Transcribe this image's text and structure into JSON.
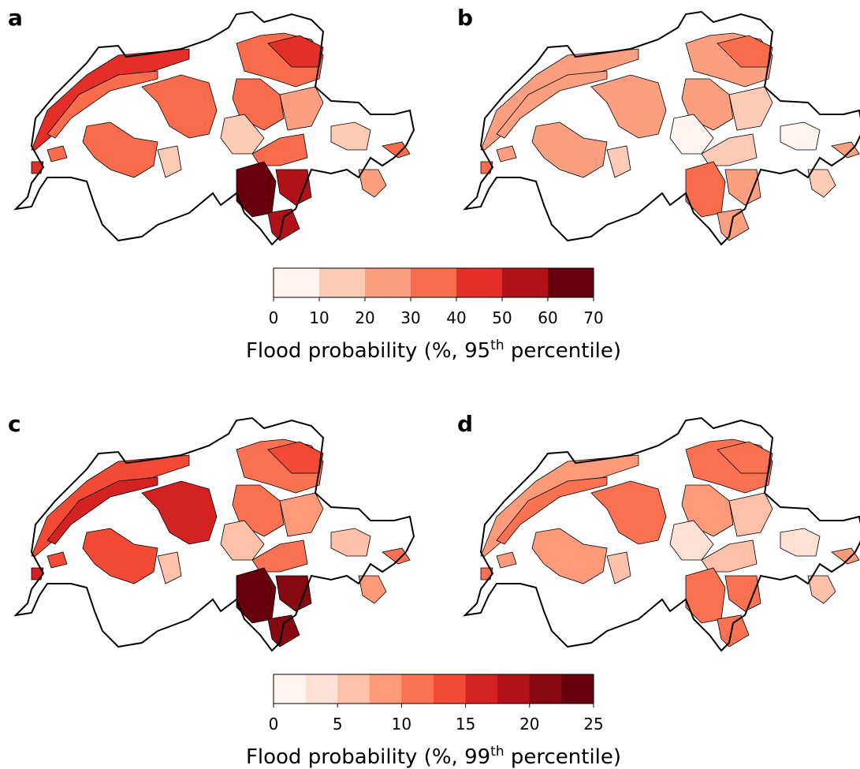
{
  "rows": [
    {
      "panels": [
        {
          "label": "a",
          "region_values": [
            45,
            35,
            35,
            32,
            30,
            15,
            38,
            45,
            35,
            12,
            20,
            30,
            65,
            55,
            55,
            15,
            20,
            35,
            40
          ]
        },
        {
          "label": "b",
          "region_values": [
            25,
            25,
            25,
            28,
            25,
            15,
            28,
            35,
            25,
            8,
            15,
            12,
            35,
            25,
            25,
            8,
            15,
            20,
            30
          ]
        }
      ],
      "colorbar": {
        "lim": [
          0,
          70
        ],
        "ticks": [
          0,
          10,
          20,
          30,
          40,
          50,
          60,
          70
        ],
        "colors": [
          "#fff5f0",
          "#fdcab5",
          "#fc9e80",
          "#fb6c4c",
          "#e32f27",
          "#b11218",
          "#67000d"
        ],
        "label": {
          "text": "Flood probability (%, 95",
          "sup": "th",
          "rest": " percentile)"
        }
      }
    },
    {
      "panels": [
        {
          "label": "c",
          "region_values": [
            14,
            15,
            13,
            16,
            14,
            7,
            12,
            14,
            12,
            5,
            9,
            11,
            24,
            20,
            20,
            6,
            8,
            12,
            16
          ]
        },
        {
          "label": "d",
          "region_values": [
            9,
            10,
            9,
            10,
            9,
            6,
            11,
            12,
            9,
            4,
            6,
            7,
            12,
            10,
            10,
            4,
            6,
            8,
            11
          ]
        }
      ],
      "colorbar": {
        "lim": [
          0,
          25
        ],
        "ticks": [
          0,
          5,
          10,
          15,
          20,
          25
        ],
        "colors": [
          "#fff5f0",
          "#fee1d4",
          "#fdc1a9",
          "#fc9a7a",
          "#fb7252",
          "#f24a35",
          "#d42121",
          "#b01217",
          "#860811",
          "#67000d"
        ],
        "label": {
          "text": "Flood probability (%, 99",
          "sup": "th",
          "rest": " percentile)"
        }
      }
    }
  ]
}
